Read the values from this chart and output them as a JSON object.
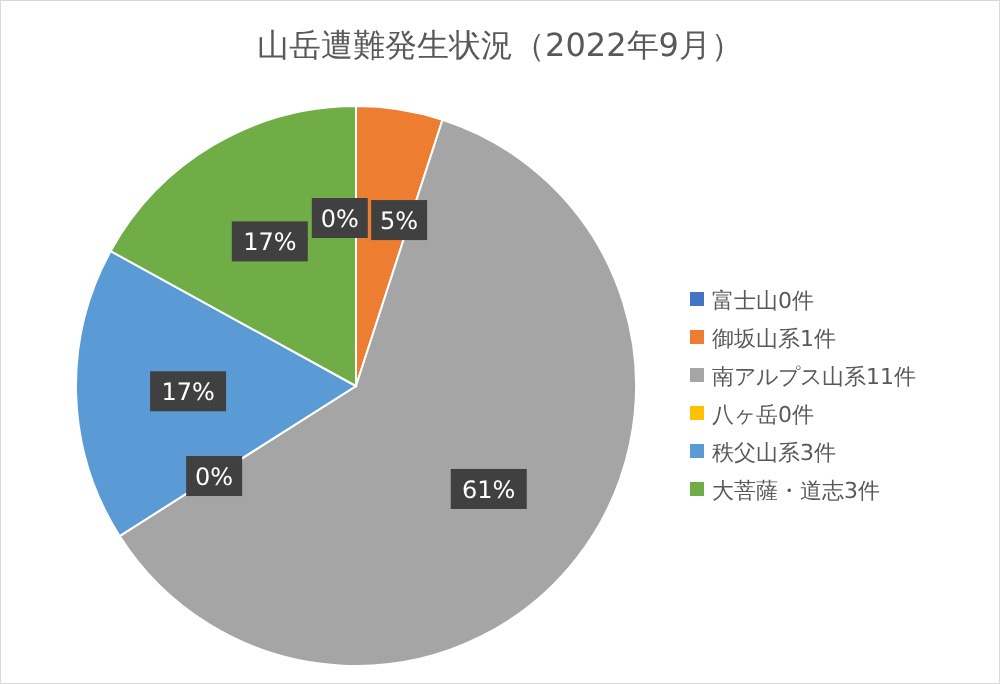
{
  "chart_data": {
    "type": "pie",
    "title": "山岳遭難発生状況（2022年9月）",
    "categories": [
      "富士山0件",
      "御坂山系1件",
      "南アルプス山系11件",
      "八ヶ岳0件",
      "秩父山系3件",
      "大菩薩・道志3件"
    ],
    "values": [
      0,
      5,
      61,
      0,
      17,
      17
    ],
    "colors": [
      "#4472c4",
      "#ed7d31",
      "#a5a5a5",
      "#ffc000",
      "#5b9bd5",
      "#70ad47"
    ],
    "value_labels": [
      "0%",
      "5%",
      "61%",
      "0%",
      "17%",
      "17%"
    ],
    "legend": "right"
  }
}
